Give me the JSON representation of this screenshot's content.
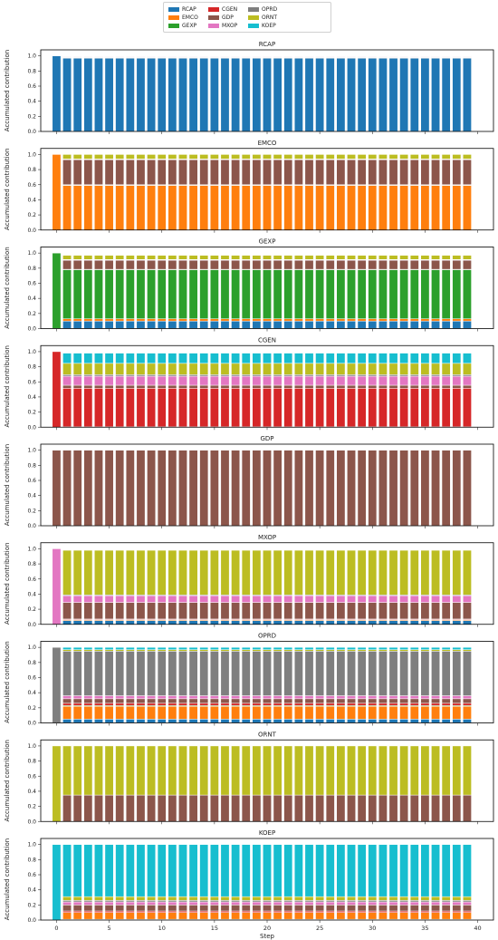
{
  "chart_data": {
    "type": "bar",
    "stacked": true,
    "legend_position": "top-center",
    "legend": [
      {
        "name": "RCAP",
        "color": "#1f77b4"
      },
      {
        "name": "EMCO",
        "color": "#ff7f0e"
      },
      {
        "name": "GEXP",
        "color": "#2ca02c"
      },
      {
        "name": "CGEN",
        "color": "#d62728"
      },
      {
        "name": "GDP",
        "color": "#8c564b"
      },
      {
        "name": "MXOP",
        "color": "#e377c2"
      },
      {
        "name": "OPRD",
        "color": "#7f7f7f"
      },
      {
        "name": "ORNT",
        "color": "#bcbd22"
      },
      {
        "name": "KOEP",
        "color": "#17becf"
      }
    ],
    "x": {
      "label": "Step",
      "ticks": [
        0,
        5,
        10,
        15,
        20,
        25,
        30,
        35,
        40
      ],
      "range": [
        -1.5,
        41.5
      ],
      "steps": 40
    },
    "y": {
      "label": "Accumulated contribution",
      "ticks": [
        "0.0",
        "0.2",
        "0.4",
        "0.6",
        "0.8",
        "1.0"
      ],
      "range": [
        0,
        1.08
      ]
    },
    "grid": false,
    "panels": [
      {
        "title": "RCAP",
        "first": {
          "RCAP": 1.0
        },
        "rest": {
          "RCAP": 0.97,
          "EMCO": 0.005,
          "GEXP": 0.005,
          "CGEN": 0.003,
          "GDP": 0.007,
          "MXOP": 0.003,
          "OPRD": 0.003,
          "ORNT": 0.004,
          "KOEP": 0.0
        }
      },
      {
        "title": "EMCO",
        "first": {
          "EMCO": 1.0
        },
        "rest": {
          "RCAP": 0.0,
          "EMCO": 0.59,
          "GEXP": 0.005,
          "CGEN": 0.005,
          "GDP": 0.33,
          "MXOP": 0.005,
          "OPRD": 0.005,
          "ORNT": 0.06,
          "KOEP": 0.0
        }
      },
      {
        "title": "GEXP",
        "first": {
          "GEXP": 1.0
        },
        "rest": {
          "RCAP": 0.1,
          "EMCO": 0.03,
          "GEXP": 0.65,
          "CGEN": 0.005,
          "GDP": 0.12,
          "MXOP": 0.005,
          "OPRD": 0.005,
          "ORNT": 0.055,
          "KOEP": 0.0
        }
      },
      {
        "title": "CGEN",
        "first": {
          "CGEN": 1.0
        },
        "rest": {
          "RCAP": 0.005,
          "EMCO": 0.0,
          "GEXP": 0.0,
          "CGEN": 0.51,
          "GDP": 0.04,
          "MXOP": 0.12,
          "OPRD": 0.02,
          "ORNT": 0.15,
          "KOEP": 0.135
        }
      },
      {
        "title": "GDP",
        "first": {
          "GDP": 1.0
        },
        "rest": {
          "RCAP": 0.0,
          "EMCO": 0.0,
          "GEXP": 0.0,
          "CGEN": 0.0,
          "GDP": 1.0,
          "MXOP": 0.0,
          "OPRD": 0.0,
          "ORNT": 0.0,
          "KOEP": 0.0
        }
      },
      {
        "title": "MXOP",
        "first": {
          "MXOP": 1.0
        },
        "rest": {
          "RCAP": 0.05,
          "EMCO": 0.01,
          "GEXP": 0.0,
          "CGEN": 0.01,
          "GDP": 0.22,
          "MXOP": 0.09,
          "OPRD": 0.01,
          "ORNT": 0.59,
          "KOEP": 0.0
        }
      },
      {
        "title": "OPRD",
        "first": {
          "OPRD": 1.0
        },
        "rest": {
          "RCAP": 0.05,
          "EMCO": 0.17,
          "GEXP": 0.01,
          "CGEN": 0.03,
          "GDP": 0.06,
          "MXOP": 0.04,
          "OPRD": 0.59,
          "ORNT": 0.02,
          "KOEP": 0.03
        }
      },
      {
        "title": "ORNT",
        "first": {
          "ORNT": 1.0
        },
        "rest": {
          "RCAP": 0.0,
          "EMCO": 0.0,
          "GEXP": 0.0,
          "CGEN": 0.0,
          "GDP": 0.35,
          "MXOP": 0.0,
          "OPRD": 0.0,
          "ORNT": 0.65,
          "KOEP": 0.0
        }
      },
      {
        "title": "KOEP",
        "first": {
          "KOEP": 1.0
        },
        "rest": {
          "RCAP": 0.01,
          "EMCO": 0.09,
          "GEXP": 0.0,
          "CGEN": 0.02,
          "GDP": 0.08,
          "MXOP": 0.04,
          "OPRD": 0.02,
          "ORNT": 0.05,
          "KOEP": 0.69
        }
      }
    ]
  }
}
